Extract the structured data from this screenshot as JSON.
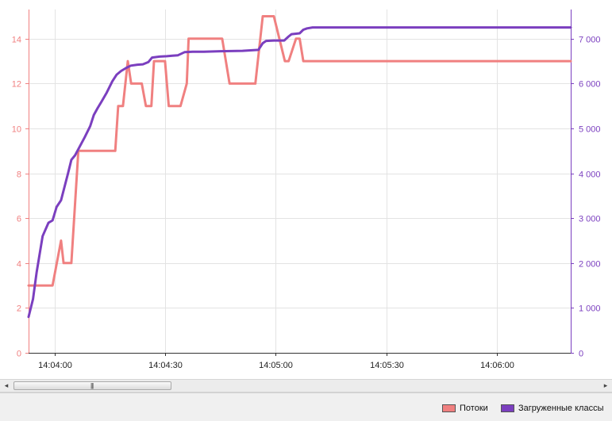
{
  "chart_data": {
    "type": "line",
    "title": "",
    "xlabel": "",
    "ylabel": "",
    "x_tick_labels": [
      "14:04:00",
      "14:04:30",
      "14:05:00",
      "14:05:30",
      "14:06:00"
    ],
    "x_tick_seconds": [
      0,
      30,
      60,
      90,
      120
    ],
    "xlim_seconds": [
      -7,
      140
    ],
    "y_left": {
      "lim": [
        0,
        15.3
      ],
      "ticks": [
        0,
        2,
        4,
        6,
        8,
        10,
        12,
        14
      ],
      "tick_labels": [
        "0",
        "2",
        "4",
        "6",
        "8",
        "10",
        "12",
        "14"
      ],
      "color": "#f08080"
    },
    "y_right": {
      "lim": [
        0,
        7650
      ],
      "ticks": [
        0,
        1000,
        2000,
        3000,
        4000,
        5000,
        6000,
        7000
      ],
      "tick_labels": [
        "0",
        "1 000",
        "2 000",
        "3 000",
        "4 000",
        "5 000",
        "6 000",
        "7 000"
      ],
      "color": "#7b3fbf"
    },
    "grid": true,
    "legend": "bottom-right",
    "series": [
      {
        "name": "Потоки",
        "axis": "left",
        "color": "#f08080",
        "x": [
          -7,
          -0.5,
          1.8,
          2.5,
          3.3,
          4.6,
          6.5,
          16.5,
          17.3,
          18.6,
          19.9,
          20.8,
          23.7,
          24.8,
          26.3,
          27.0,
          30.0,
          31.0,
          33.7,
          34.2,
          35.9,
          36.4,
          45.5,
          47.5,
          53.5,
          54.5,
          56.5,
          59.5,
          62.5,
          63.5,
          65.5,
          66.5,
          67.5,
          140
        ],
        "y": [
          3,
          3,
          5,
          4,
          4,
          4,
          9,
          9,
          11,
          11,
          13,
          12,
          12,
          11,
          11,
          13,
          13,
          11,
          11,
          11,
          12,
          14,
          14,
          12,
          12,
          12,
          15,
          15,
          13,
          13,
          14,
          14,
          13,
          13
        ]
      },
      {
        "name": "Загруженные классы",
        "axis": "right",
        "color": "#7b3fbf",
        "x": [
          -7,
          -5.8,
          -4.8,
          -3.2,
          -1.6,
          -0.5,
          0.6,
          1.8,
          3.7,
          4.6,
          5.6,
          6.9,
          8.2,
          9.7,
          10.7,
          11.7,
          12.8,
          14.2,
          15.7,
          16.9,
          18.1,
          19.5,
          20.7,
          22.5,
          24.0,
          25.5,
          26.5,
          28.5,
          30.5,
          32.0,
          33.5,
          35.3,
          37.5,
          40.5,
          45.0,
          51.0,
          55.3,
          56.5,
          57.4,
          59.5,
          62.3,
          63.5,
          64.3,
          66.5,
          67.5,
          68.5,
          70.0,
          140
        ],
        "y": [
          800,
          1200,
          1800,
          2600,
          2900,
          2950,
          3250,
          3400,
          4000,
          4300,
          4400,
          4600,
          4800,
          5050,
          5300,
          5450,
          5600,
          5800,
          6050,
          6200,
          6280,
          6350,
          6400,
          6420,
          6430,
          6480,
          6580,
          6600,
          6610,
          6620,
          6630,
          6700,
          6710,
          6710,
          6720,
          6730,
          6750,
          6900,
          6950,
          6960,
          6960,
          7050,
          7100,
          7120,
          7200,
          7230,
          7250,
          7250
        ]
      }
    ]
  },
  "scrollbar": {
    "left_arrow": "◂",
    "right_arrow": "▸",
    "grip": "|||"
  }
}
